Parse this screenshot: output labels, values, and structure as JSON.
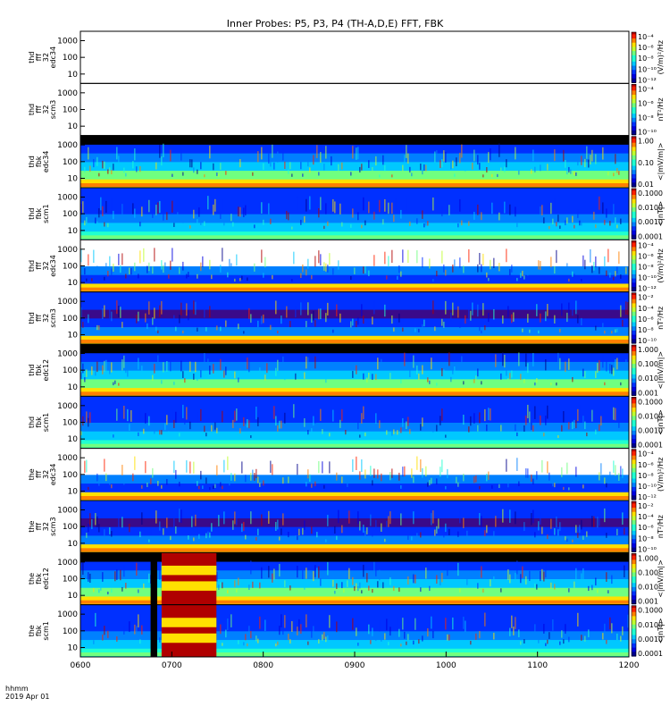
{
  "chart_data": {
    "type": "heatmap",
    "title": "Inner Probes: P5, P3, P4 (TH-A,D,E) FFT, FBK",
    "x_ticks": [
      "0600",
      "0700",
      "0800",
      "0900",
      "1000",
      "1100",
      "1200"
    ],
    "x_range": [
      "0600",
      "1200"
    ],
    "time_label": "hhmm",
    "date_label": "2019 Apr 01",
    "panels": [
      {
        "ylabel": [
          "thd",
          "fff",
          "32",
          "edc34"
        ],
        "yticks": [
          "1000",
          "100",
          "10"
        ],
        "cbar_ticks": [
          "10⁻⁴",
          "10⁻⁶",
          "10⁻⁸",
          "10⁻¹⁰",
          "10⁻¹²"
        ],
        "unit": "(V/m)²/Hz",
        "empty": true
      },
      {
        "ylabel": [
          "thd",
          "fff",
          "32",
          "scm3"
        ],
        "yticks": [
          "1000",
          "100",
          "10"
        ],
        "cbar_ticks": [
          "10⁻⁴",
          "10⁻⁶",
          "10⁻⁸",
          "10⁻¹⁰"
        ],
        "unit": "nT²/Hz",
        "empty": true
      },
      {
        "ylabel": [
          "thd",
          "fbk",
          "edc34"
        ],
        "yticks": [
          "1000",
          "100",
          "10"
        ],
        "cbar_ticks": [
          "1.00",
          "0.10",
          "0.01"
        ],
        "unit": "<|mV/m|>"
      },
      {
        "ylabel": [
          "thd",
          "fbk",
          "scm1"
        ],
        "yticks": [
          "1000",
          "100",
          "10"
        ],
        "cbar_ticks": [
          "0.1000",
          "0.0100",
          "0.0010",
          "0.0001"
        ],
        "unit": "<|nT|>"
      },
      {
        "ylabel": [
          "thd",
          "fff",
          "32",
          "edc34"
        ],
        "yticks": [
          "1000",
          "100",
          "10"
        ],
        "cbar_ticks": [
          "10⁻⁴",
          "10⁻⁶",
          "10⁻⁸",
          "10⁻¹⁰",
          "10⁻¹²"
        ],
        "unit": "(V/m)²/Hz"
      },
      {
        "ylabel": [
          "thd",
          "fff",
          "32",
          "scm3"
        ],
        "yticks": [
          "1000",
          "100",
          "10"
        ],
        "cbar_ticks": [
          "10⁻²",
          "10⁻⁴",
          "10⁻⁶",
          "10⁻⁸",
          "10⁻¹⁰"
        ],
        "unit": "nT²/Hz"
      },
      {
        "ylabel": [
          "thd",
          "fbk",
          "edc12"
        ],
        "yticks": [
          "1000",
          "100",
          "10"
        ],
        "cbar_ticks": [
          "1.000",
          "0.100",
          "0.010",
          "0.001"
        ],
        "unit": "<|mV/m|>"
      },
      {
        "ylabel": [
          "thd",
          "fbk",
          "scm1"
        ],
        "yticks": [
          "1000",
          "100",
          "10"
        ],
        "cbar_ticks": [
          "0.1000",
          "0.0100",
          "0.0010",
          "0.0001"
        ],
        "unit": "<|nT|>"
      },
      {
        "ylabel": [
          "the",
          "fff",
          "32",
          "edc34"
        ],
        "yticks": [
          "1000",
          "100",
          "10"
        ],
        "cbar_ticks": [
          "10⁻⁴",
          "10⁻⁶",
          "10⁻⁸",
          "10⁻¹⁰",
          "10⁻¹²"
        ],
        "unit": "(V/m)²/Hz"
      },
      {
        "ylabel": [
          "the",
          "fff",
          "32",
          "scm3"
        ],
        "yticks": [
          "1000",
          "100",
          "10"
        ],
        "cbar_ticks": [
          "10⁻²",
          "10⁻⁴",
          "10⁻⁶",
          "10⁻⁸",
          "10⁻¹⁰"
        ],
        "unit": "nT²/Hz"
      },
      {
        "ylabel": [
          "the",
          "fbk",
          "edc12"
        ],
        "yticks": [
          "1000",
          "100",
          "10"
        ],
        "cbar_ticks": [
          "1.000",
          "0.100",
          "0.010",
          "0.001"
        ],
        "unit": "<|mV/m|>"
      },
      {
        "ylabel": [
          "the",
          "fbk",
          "scm1"
        ],
        "yticks": [
          "1000",
          "100",
          "10"
        ],
        "cbar_ticks": [
          "0.1000",
          "0.0100",
          "0.0010",
          "0.0001"
        ],
        "unit": "<|nT|>"
      }
    ]
  }
}
